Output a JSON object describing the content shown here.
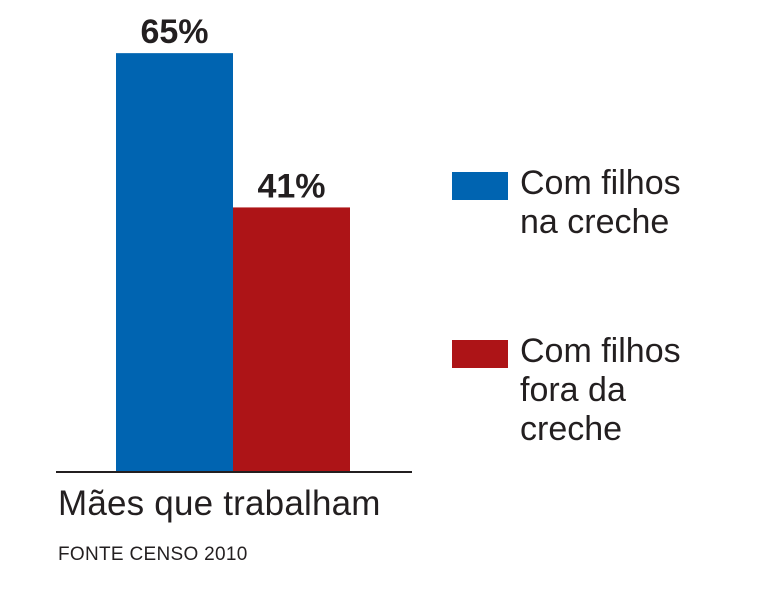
{
  "chart_data": {
    "type": "bar",
    "categories": [
      "Mães que trabalham"
    ],
    "series": [
      {
        "name": "Com filhos\nna creche",
        "values": [
          65
        ],
        "color": "#0064b1",
        "data_label": "65%"
      },
      {
        "name": "Com filhos\nfora da\ncreche",
        "values": [
          41
        ],
        "color": "#ad1417",
        "data_label": "41%"
      }
    ],
    "ylim": [
      0,
      70
    ],
    "grid": false,
    "legend_placement": "right",
    "source": "FONTE CENSO 2010"
  },
  "colors": {
    "axis": "#231f20"
  }
}
